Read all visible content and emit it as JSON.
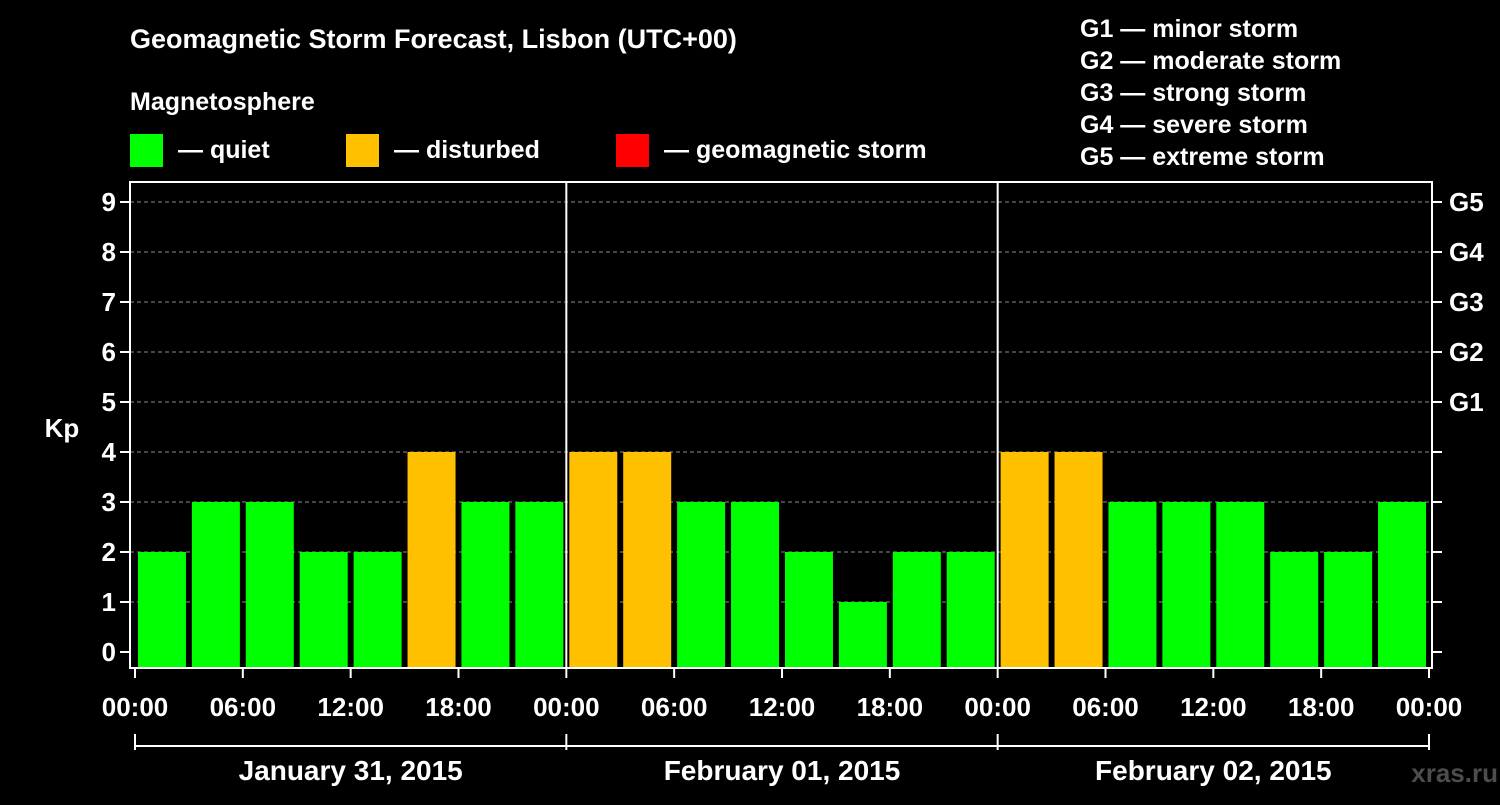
{
  "chart_data": {
    "type": "bar",
    "title": "Geomagnetic Storm Forecast, Lisbon (UTC+00)",
    "ylabel": "Kp",
    "ylim": [
      0,
      9
    ],
    "yticks": [
      "0",
      "1",
      "2",
      "3",
      "4",
      "5",
      "6",
      "7",
      "8",
      "9"
    ],
    "storm_scale": [
      {
        "kp": 5,
        "label": "G1"
      },
      {
        "kp": 6,
        "label": "G2"
      },
      {
        "kp": 7,
        "label": "G3"
      },
      {
        "kp": 8,
        "label": "G4"
      },
      {
        "kp": 9,
        "label": "G5"
      }
    ],
    "grid": true,
    "xticks": [
      "00:00",
      "06:00",
      "12:00",
      "18:00",
      "00:00",
      "06:00",
      "12:00",
      "18:00",
      "00:00",
      "06:00",
      "12:00",
      "18:00",
      "00:00"
    ],
    "days": [
      "January 31, 2015",
      "February 01, 2015",
      "February 02, 2015"
    ],
    "values": [
      2,
      3,
      3,
      2,
      2,
      4,
      3,
      3,
      4,
      4,
      3,
      3,
      2,
      1,
      2,
      2,
      4,
      4,
      3,
      3,
      3,
      2,
      2,
      3
    ],
    "legend": {
      "heading": "Magnetosphere",
      "items": [
        {
          "label": "— quiet",
          "color": "#00ff00"
        },
        {
          "label": "— disturbed",
          "color": "#ffc000"
        },
        {
          "label": "— geomagnetic storm",
          "color": "#ff0000"
        }
      ]
    },
    "scale_legend": [
      "G1 — minor storm",
      "G2 — moderate storm",
      "G3 — strong storm",
      "G4 — severe storm",
      "G5 — extreme storm"
    ],
    "colors": {
      "quiet": "#00ff00",
      "disturbed": "#ffc000",
      "storm": "#ff0000"
    }
  },
  "watermark": "xras.ru"
}
